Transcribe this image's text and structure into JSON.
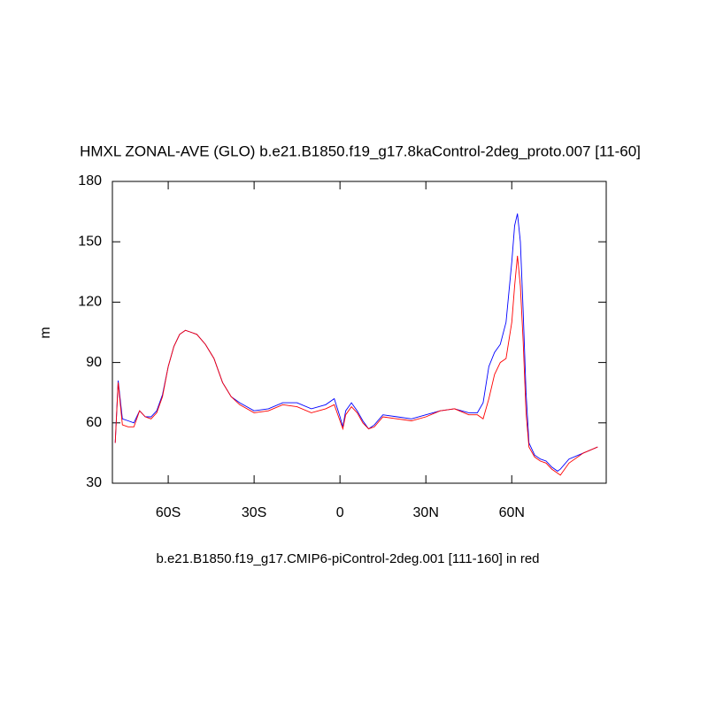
{
  "chart_data": {
    "type": "line",
    "title": "HMXL ZONAL-AVE (GLO) b.e21.B1850.f19_g17.8kaControl-2deg_proto.007 [11-60]",
    "x_label": "b.e21.B1850.f19_g17.CMIP6-piControl-2deg.001 [111-160] in red",
    "y_label": "m",
    "x": [
      -78.5,
      -77.5,
      -76,
      -74,
      -72,
      -70,
      -68,
      -66,
      -64,
      -62,
      -60,
      -58,
      -56,
      -54,
      -52,
      -50,
      -47,
      -44,
      -41,
      -38,
      -35,
      -30,
      -25,
      -20,
      -15,
      -10,
      -5,
      -2,
      0,
      1,
      2,
      4,
      6,
      8,
      10,
      12,
      15,
      20,
      25,
      30,
      35,
      40,
      45,
      48,
      50,
      52,
      54,
      56,
      58,
      60,
      61,
      62,
      63,
      64,
      65,
      66,
      68,
      70,
      72,
      74,
      76,
      77,
      80,
      85,
      90
    ],
    "series": [
      {
        "color": "#0000ff",
        "values": [
          50,
          81,
          62,
          61,
          60,
          66,
          63,
          63,
          66,
          74,
          88,
          98,
          104,
          106,
          105,
          104,
          99,
          92,
          80,
          73,
          70,
          66,
          67,
          70,
          70,
          67,
          69,
          72,
          63,
          58,
          66,
          70,
          66,
          61,
          57,
          59,
          64,
          63,
          62,
          64,
          66,
          67,
          65,
          65,
          70,
          88,
          95,
          99,
          110,
          140,
          158,
          164,
          150,
          115,
          75,
          50,
          44,
          42,
          41,
          38,
          36,
          37,
          42,
          45,
          48
        ]
      },
      {
        "color": "#ff0000",
        "values": [
          50,
          80,
          59,
          58,
          58,
          66,
          63,
          62,
          65,
          73,
          88,
          98,
          104,
          106,
          105,
          104,
          99,
          92,
          80,
          73,
          69,
          65,
          66,
          69,
          68,
          65,
          67,
          69,
          61,
          57,
          64,
          68,
          65,
          60,
          57,
          58,
          63,
          62,
          61,
          63,
          66,
          67,
          64,
          64,
          62,
          72,
          84,
          90,
          92,
          110,
          128,
          143,
          128,
          100,
          65,
          48,
          43,
          41,
          40,
          37,
          35,
          34,
          40,
          45,
          48
        ]
      }
    ],
    "xlim": [
      -79.5,
      93
    ],
    "xticks": [
      {
        "value": -60,
        "label": "60S"
      },
      {
        "value": -30,
        "label": "30S"
      },
      {
        "value": 0,
        "label": "0"
      },
      {
        "value": 30,
        "label": "30N"
      },
      {
        "value": 60,
        "label": "60N"
      }
    ],
    "ylim": [
      30,
      180
    ],
    "yticks": [
      30,
      60,
      90,
      120,
      150,
      180
    ],
    "grid": false
  }
}
